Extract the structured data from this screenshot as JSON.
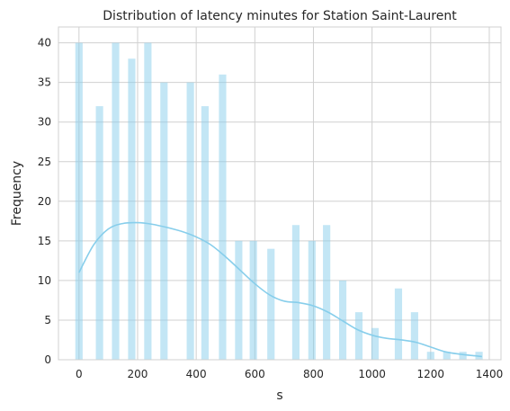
{
  "chart_data": {
    "type": "bar",
    "title": "Distribution of latency minutes for Station Saint-Laurent",
    "xlabel": "s",
    "ylabel": "Frequency",
    "xlim": [
      -70,
      1440
    ],
    "ylim": [
      0,
      42
    ],
    "xticks": [
      0,
      200,
      400,
      600,
      800,
      1000,
      1200,
      1400
    ],
    "yticks": [
      0,
      5,
      10,
      15,
      20,
      25,
      30,
      35,
      40
    ],
    "grid": true,
    "bar_color": "#87ceeb",
    "kde_color": "#87ceeb",
    "bars": [
      {
        "x": 0,
        "value": 40
      },
      {
        "x": 70,
        "value": 32
      },
      {
        "x": 125,
        "value": 40
      },
      {
        "x": 180,
        "value": 38
      },
      {
        "x": 235,
        "value": 40
      },
      {
        "x": 290,
        "value": 35
      },
      {
        "x": 380,
        "value": 35
      },
      {
        "x": 430,
        "value": 32
      },
      {
        "x": 490,
        "value": 36
      },
      {
        "x": 545,
        "value": 15
      },
      {
        "x": 595,
        "value": 15
      },
      {
        "x": 655,
        "value": 14
      },
      {
        "x": 740,
        "value": 17
      },
      {
        "x": 795,
        "value": 15
      },
      {
        "x": 845,
        "value": 17
      },
      {
        "x": 900,
        "value": 10
      },
      {
        "x": 955,
        "value": 6
      },
      {
        "x": 1010,
        "value": 4
      },
      {
        "x": 1090,
        "value": 9
      },
      {
        "x": 1145,
        "value": 6
      },
      {
        "x": 1200,
        "value": 1
      },
      {
        "x": 1255,
        "value": 1
      },
      {
        "x": 1310,
        "value": 1
      },
      {
        "x": 1365,
        "value": 1
      }
    ],
    "bar_width": 25,
    "kde": {
      "x": [
        0,
        50,
        100,
        150,
        200,
        250,
        300,
        350,
        400,
        450,
        500,
        550,
        600,
        650,
        700,
        750,
        800,
        850,
        900,
        950,
        1000,
        1050,
        1100,
        1150,
        1200,
        1250,
        1300,
        1350,
        1375
      ],
      "y": [
        11,
        14.5,
        16.5,
        17.2,
        17.3,
        17.1,
        16.7,
        16.2,
        15.5,
        14.5,
        13,
        11.3,
        9.6,
        8.2,
        7.4,
        7.2,
        6.8,
        6.0,
        4.9,
        3.8,
        3.1,
        2.7,
        2.5,
        2.2,
        1.6,
        1.0,
        0.7,
        0.5,
        0.4
      ]
    }
  }
}
